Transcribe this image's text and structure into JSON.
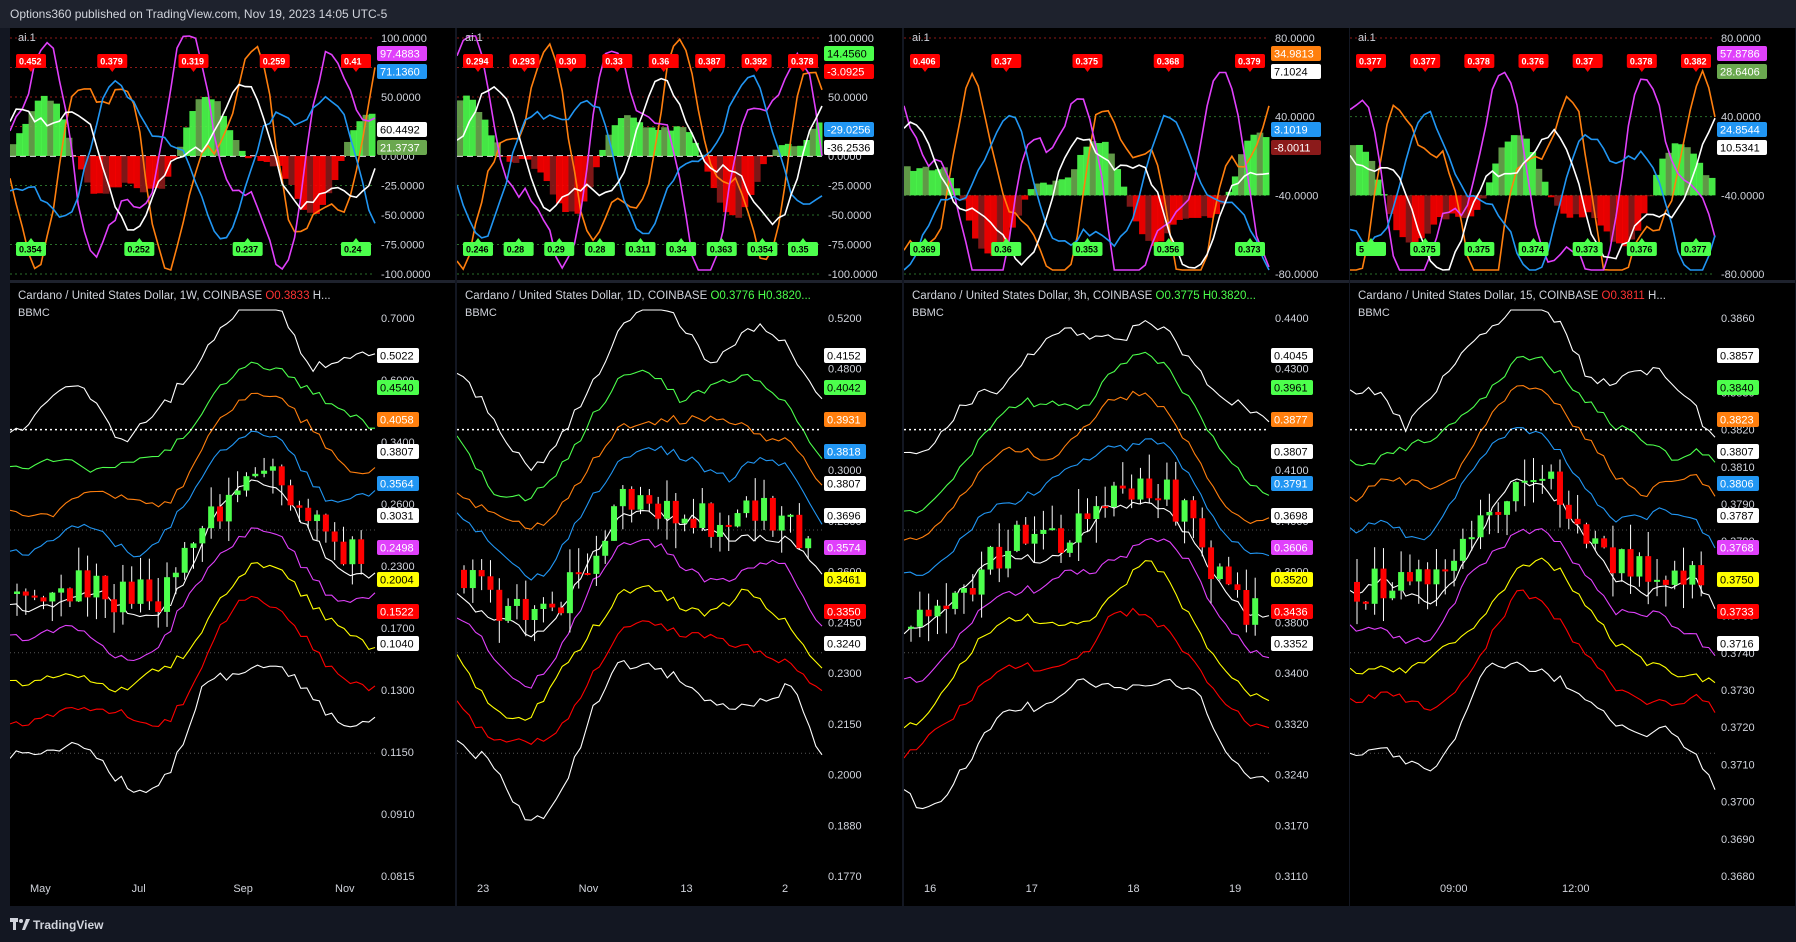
{
  "header": {
    "text": "Options360 published on TradingView.com, Nov 19, 2023 14:05 UTC-5"
  },
  "footer": {
    "logo_text": "TradingView"
  },
  "indicator_label": "ai.1",
  "panels": [
    {
      "id": "1w",
      "title": "Cardano / United States Dollar, 1W, COINBASE",
      "ohlc_o": "O0.3833",
      "ohlc_h": "H...",
      "open_color": "red",
      "study": "BBMC",
      "x_labels": [
        "May",
        "Jul",
        "Sep",
        "Nov"
      ],
      "osc_axis": [
        "100.0000",
        "75.0000",
        "50.0000",
        "25.0000",
        "0.0000",
        "-25.0000",
        "-50.0000",
        "-75.0000",
        "-100.0000"
      ],
      "osc_badges": [
        {
          "text": "97.4883",
          "bg": "#e040fb",
          "fg": "#ffffff"
        },
        {
          "text": "71.1360",
          "bg": "#2196f3",
          "fg": "#ffffff"
        },
        {
          "text": "60.4492",
          "bg": "#ffffff",
          "fg": "#000000"
        },
        {
          "text": "21.3737",
          "bg": "#6aa84f",
          "fg": "#ffffff"
        }
      ],
      "top_tags": [
        "0.452",
        "0.379",
        "0.319",
        "0.259",
        "0.41"
      ],
      "bottom_tags": [
        "0.354",
        "0.252",
        "0.237",
        "0.24"
      ],
      "price_axis": [
        "0.7000",
        "0.6000",
        "0.3400",
        "0.2600",
        "0.2300",
        "0.1700",
        "0.1300",
        "0.1150",
        "0.0910",
        "0.0815"
      ],
      "price_badges": [
        {
          "text": "0.5022",
          "bg": "#ffffff",
          "fg": "#000000"
        },
        {
          "text": "0.4540",
          "bg": "#4cff4c",
          "fg": "#000000"
        },
        {
          "text": "0.4058",
          "bg": "#ff7f0e",
          "fg": "#ffffff"
        },
        {
          "text": "0.3807",
          "bg": "#ffffff",
          "fg": "#000000"
        },
        {
          "text": "0.3564",
          "bg": "#2196f3",
          "fg": "#ffffff"
        },
        {
          "text": "0.3031",
          "bg": "#ffffff",
          "fg": "#000000"
        },
        {
          "text": "0.2498",
          "bg": "#e040fb",
          "fg": "#ffffff"
        },
        {
          "text": "0.2004",
          "bg": "#ffff00",
          "fg": "#000000"
        },
        {
          "text": "0.1522",
          "bg": "#ff0000",
          "fg": "#ffffff"
        },
        {
          "text": "0.1040",
          "bg": "#ffffff",
          "fg": "#000000"
        }
      ]
    },
    {
      "id": "1d",
      "title": "Cardano / United States Dollar, 1D, COINBASE",
      "ohlc_o": "O0.3776",
      "ohlc_h": "H0.3820...",
      "open_color": "green",
      "study": "BBMC",
      "x_labels": [
        "23",
        "Nov",
        "13",
        "2"
      ],
      "osc_axis": [
        "100.0000",
        "75.0000",
        "50.0000",
        "25.0000",
        "0.0000",
        "-25.0000",
        "-50.0000",
        "-75.0000",
        "-100.0000"
      ],
      "osc_badges": [
        {
          "text": "14.4560",
          "bg": "#4cff4c",
          "fg": "#000000"
        },
        {
          "text": "-3.0925",
          "bg": "#ff0000",
          "fg": "#ffffff"
        },
        {
          "text": "-29.0256",
          "bg": "#2196f3",
          "fg": "#ffffff"
        },
        {
          "text": "-36.2536",
          "bg": "#ffffff",
          "fg": "#000000"
        }
      ],
      "top_tags": [
        "0.294",
        "0.293",
        "0.30",
        "0.33",
        "0.36",
        "0.387",
        "0.392",
        "0.378"
      ],
      "bottom_tags": [
        "0.246",
        "0.28",
        "0.29",
        "0.28",
        "0.311",
        "0.34",
        "0.363",
        "0.354",
        "0.35"
      ],
      "price_axis": [
        "0.5200",
        "0.4800",
        "0.4100",
        "0.3000",
        "0.2800",
        "0.2600",
        "0.2450",
        "0.2300",
        "0.2150",
        "0.2000",
        "0.1880",
        "0.1770"
      ],
      "price_badges": [
        {
          "text": "0.4152",
          "bg": "#ffffff",
          "fg": "#000000"
        },
        {
          "text": "0.4042",
          "bg": "#4cff4c",
          "fg": "#000000"
        },
        {
          "text": "0.3931",
          "bg": "#ff7f0e",
          "fg": "#ffffff"
        },
        {
          "text": "0.3818",
          "bg": "#2196f3",
          "fg": "#ffffff"
        },
        {
          "text": "0.3807",
          "bg": "#ffffff",
          "fg": "#000000"
        },
        {
          "text": "0.3696",
          "bg": "#ffffff",
          "fg": "#000000"
        },
        {
          "text": "0.3574",
          "bg": "#e040fb",
          "fg": "#ffffff"
        },
        {
          "text": "0.3461",
          "bg": "#ffff00",
          "fg": "#000000"
        },
        {
          "text": "0.3350",
          "bg": "#ff0000",
          "fg": "#ffffff"
        },
        {
          "text": "0.3240",
          "bg": "#ffffff",
          "fg": "#000000"
        }
      ]
    },
    {
      "id": "3h",
      "title": "Cardano / United States Dollar, 3h, COINBASE",
      "ohlc_o": "O0.3775",
      "ohlc_h": "H0.3820...",
      "open_color": "green",
      "study": "BBMC",
      "x_labels": [
        "16",
        "17",
        "18",
        "19"
      ],
      "osc_axis": [
        "80.0000",
        "40.0000",
        "-40.0000",
        "-80.0000"
      ],
      "osc_badges": [
        {
          "text": "34.9813",
          "bg": "#ff7f0e",
          "fg": "#ffffff"
        },
        {
          "text": "7.1024",
          "bg": "#ffffff",
          "fg": "#000000"
        },
        {
          "text": "3.1019",
          "bg": "#2196f3",
          "fg": "#ffffff"
        },
        {
          "text": "-8.0011",
          "bg": "#8b1a1a",
          "fg": "#ffffff"
        }
      ],
      "top_tags": [
        "0.406",
        "0.37",
        "0.375",
        "0.368",
        "0.379"
      ],
      "bottom_tags": [
        "0.369",
        "0.36",
        "0.353",
        "0.356",
        "0.373"
      ],
      "price_axis": [
        "0.4400",
        "0.4300",
        "0.4200",
        "0.4100",
        "0.4000",
        "0.3900",
        "0.3800",
        "0.3400",
        "0.3320",
        "0.3240",
        "0.3170",
        "0.3110"
      ],
      "price_badges": [
        {
          "text": "0.4045",
          "bg": "#ffffff",
          "fg": "#000000"
        },
        {
          "text": "0.3961",
          "bg": "#4cff4c",
          "fg": "#000000"
        },
        {
          "text": "0.3877",
          "bg": "#ff7f0e",
          "fg": "#ffffff"
        },
        {
          "text": "0.3807",
          "bg": "#ffffff",
          "fg": "#000000"
        },
        {
          "text": "0.3791",
          "bg": "#2196f3",
          "fg": "#ffffff"
        },
        {
          "text": "0.3698",
          "bg": "#ffffff",
          "fg": "#000000"
        },
        {
          "text": "0.3606",
          "bg": "#e040fb",
          "fg": "#ffffff"
        },
        {
          "text": "0.3520",
          "bg": "#ffff00",
          "fg": "#000000"
        },
        {
          "text": "0.3436",
          "bg": "#ff0000",
          "fg": "#ffffff"
        },
        {
          "text": "0.3352",
          "bg": "#ffffff",
          "fg": "#000000"
        }
      ]
    },
    {
      "id": "15",
      "title": "Cardano / United States Dollar, 15, COINBASE",
      "ohlc_o": "O0.3811",
      "ohlc_h": "H...",
      "open_color": "red",
      "study": "BBMC",
      "x_labels": [
        "09:00",
        "12:00"
      ],
      "osc_axis": [
        "80.0000",
        "40.0000",
        "-40.0000",
        "-80.0000"
      ],
      "osc_badges": [
        {
          "text": "57.8786",
          "bg": "#e040fb",
          "fg": "#ffffff"
        },
        {
          "text": "28.6406",
          "bg": "#6aa84f",
          "fg": "#ffffff"
        },
        {
          "text": "24.8544",
          "bg": "#2196f3",
          "fg": "#ffffff"
        },
        {
          "text": "10.5341",
          "bg": "#ffffff",
          "fg": "#000000"
        }
      ],
      "top_tags": [
        "0.377",
        "0.377",
        "0.378",
        "0.376",
        "0.37",
        "0.378",
        "0.382"
      ],
      "bottom_tags": [
        "5",
        "0.375",
        "0.375",
        "0.374",
        "0.373",
        "0.376",
        "0.377"
      ],
      "price_axis": [
        "0.3860",
        "0.3850",
        "0.3830",
        "0.3820",
        "0.3810",
        "0.3790",
        "0.3780",
        "0.3770",
        "0.3760",
        "0.3740",
        "0.3730",
        "0.3720",
        "0.3710",
        "0.3700",
        "0.3690",
        "0.3680"
      ],
      "price_badges": [
        {
          "text": "0.3857",
          "bg": "#ffffff",
          "fg": "#000000"
        },
        {
          "text": "0.3840",
          "bg": "#4cff4c",
          "fg": "#000000"
        },
        {
          "text": "0.3823",
          "bg": "#ff7f0e",
          "fg": "#ffffff"
        },
        {
          "text": "0.3807",
          "bg": "#ffffff",
          "fg": "#000000"
        },
        {
          "text": "0.3806",
          "bg": "#2196f3",
          "fg": "#ffffff"
        },
        {
          "text": "0.3787",
          "bg": "#ffffff",
          "fg": "#000000"
        },
        {
          "text": "0.3768",
          "bg": "#e040fb",
          "fg": "#ffffff"
        },
        {
          "text": "0.3750",
          "bg": "#ffff00",
          "fg": "#000000"
        },
        {
          "text": "0.3733",
          "bg": "#ff0000",
          "fg": "#ffffff"
        },
        {
          "text": "0.3716",
          "bg": "#ffffff",
          "fg": "#000000"
        }
      ]
    }
  ]
}
